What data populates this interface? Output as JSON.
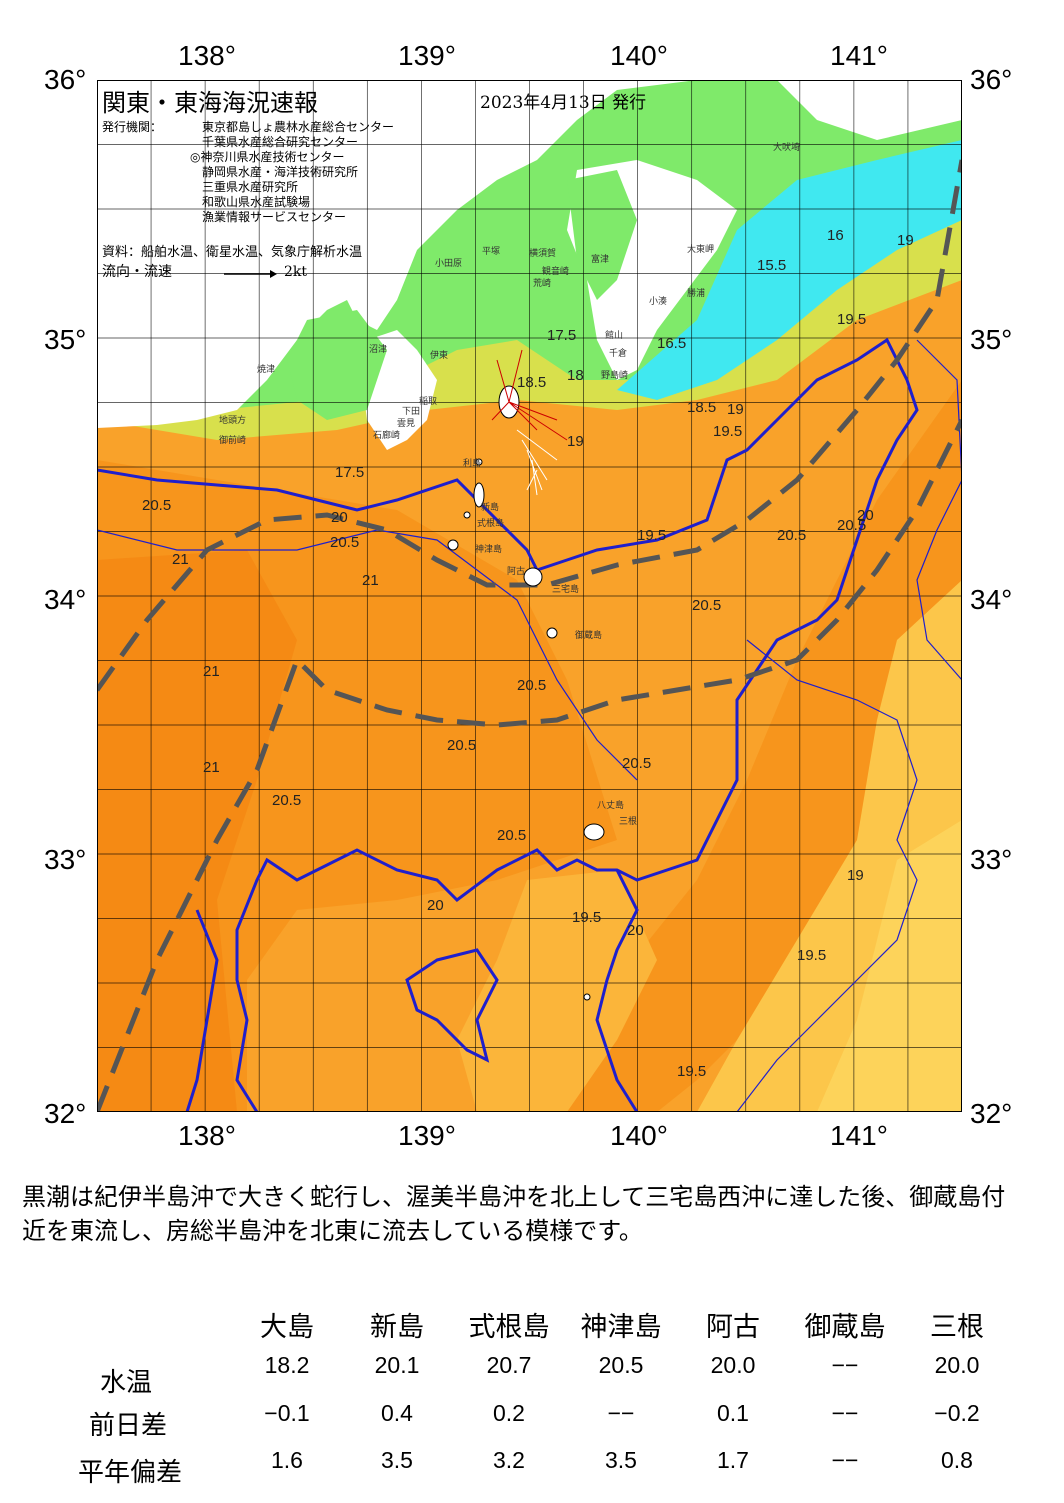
{
  "map": {
    "title": "関東・東海海況速報",
    "issue_date": "2023年4月13日 発行",
    "issuer_label": "発行機関：",
    "issuers": [
      "東京都島しょ農林水産総合センター",
      "千葉県水産総合研究センター",
      "◎神奈川県水産技術センター",
      "静岡県水産・海洋技術研究所",
      "三重県水産研究所",
      "和歌山県水産試験場",
      "漁業情報サービスセンター"
    ],
    "source": "資料：船舶水温、衛星水温、気象庁解析水温",
    "flow_label": "流向・流速",
    "flow_scale": "2kt",
    "lon_labels": [
      "138°",
      "139°",
      "140°",
      "141°"
    ],
    "lat_labels": [
      "36°",
      "35°",
      "34°",
      "33°",
      "32°"
    ],
    "lon_range": [
      137.5,
      141.5
    ],
    "lat_range": [
      32.0,
      36.0
    ],
    "colors": {
      "warm": "#f7951c",
      "mid": "#fbb040",
      "cool": "#fdd35a",
      "land_coast": "#7fea6a",
      "cold": "#40e8f0",
      "kuroshio": "#5a5a5a",
      "isotherm": "#1f1fcc"
    },
    "place_labels": [
      "焼津",
      "地頭方",
      "御前崎",
      "沼津",
      "伊東",
      "稲取",
      "下田",
      "雲見",
      "石廊崎",
      "小田原",
      "平塚",
      "横須賀",
      "観音崎",
      "富津",
      "荒崎",
      "館山",
      "千倉",
      "野島崎",
      "大東岬",
      "小湊",
      "勝浦",
      "大吠埼",
      "利島",
      "新島",
      "式根島",
      "神津島",
      "阿古",
      "三宅島",
      "御蔵島",
      "八丈島",
      "三根"
    ],
    "isotherm_labels": [
      "20.5",
      "20",
      "21",
      "19.5",
      "19",
      "18.5",
      "18",
      "17.5",
      "16.5",
      "16",
      "15.5"
    ]
  },
  "summary": "黒潮は紀伊半島沖で大きく蛇行し、渥美半島沖を北上して三宅島西沖に達した後、御蔵島付近を東流し、房総半島沖を北東に流去している模様です。",
  "table": {
    "columns": [
      "大島",
      "新島",
      "式根島",
      "神津島",
      "阿古",
      "御蔵島",
      "三根"
    ],
    "rows": [
      {
        "label": "水温",
        "values": [
          "18.2",
          "20.1",
          "20.7",
          "20.5",
          "20.0",
          "−−",
          "20.0"
        ]
      },
      {
        "label": "前日差",
        "values": [
          "−0.1",
          "0.4",
          "0.2",
          "−−",
          "0.1",
          "−−",
          "−0.2"
        ]
      },
      {
        "label": "平年偏差",
        "values": [
          "1.6",
          "3.5",
          "3.2",
          "3.5",
          "1.7",
          "−−",
          "0.8"
        ]
      }
    ]
  }
}
